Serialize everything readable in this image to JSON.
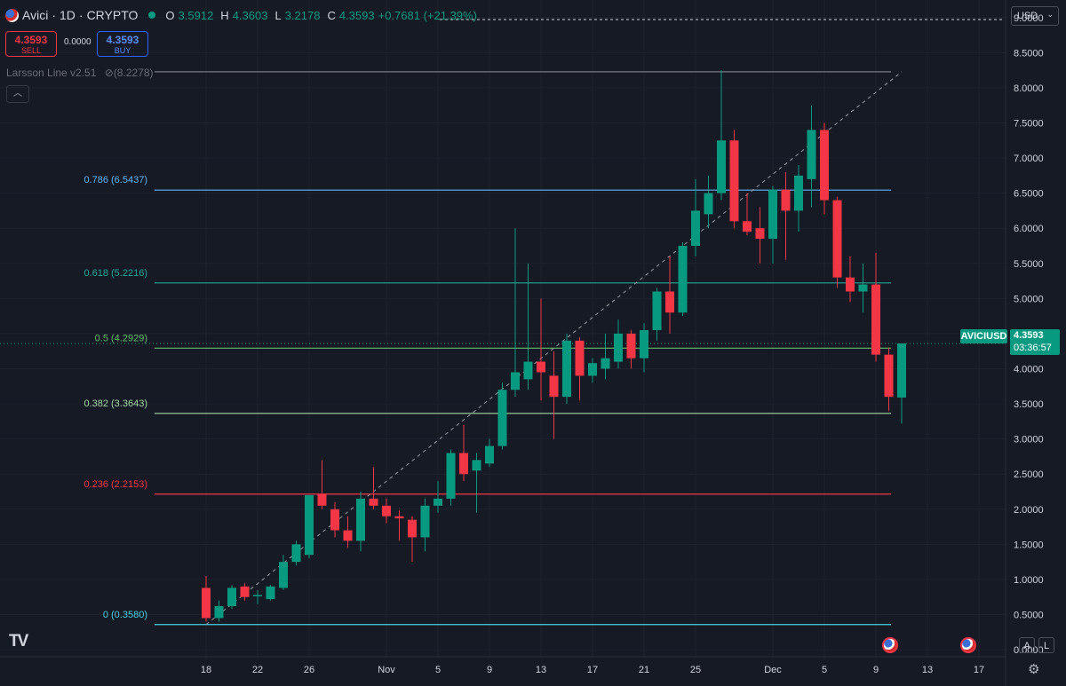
{
  "header": {
    "symbol_name": "Avici",
    "interval": "1D",
    "exchange": "CRYPTO",
    "open_label": "O",
    "open_value": "3.5912",
    "high_label": "H",
    "high_value": "4.3603",
    "low_label": "L",
    "low_value": "3.2178",
    "close_label": "C",
    "close_value": "4.3593",
    "change_value": "+0.7681 (+21.39%)"
  },
  "trade": {
    "sell_price": "4.3593",
    "sell_label": "SELL",
    "spread": "0.0000",
    "buy_price": "4.3593",
    "buy_label": "BUY"
  },
  "indicator": {
    "label": "Larsson Line v2.51",
    "extra": "(8.2278)"
  },
  "currency": {
    "label": "USD"
  },
  "price_tag": {
    "symbol": "AVICIUSD",
    "price": "4.3593",
    "countdown": "03:36:57"
  },
  "buttons": {
    "auto": "A",
    "log": "L"
  },
  "colors": {
    "background": "#161a25",
    "grid": "#1e222d",
    "up": "#089981",
    "down": "#f23645",
    "text": "#d1d4dc",
    "muted": "#787b86"
  },
  "chart_data": {
    "type": "candlestick",
    "title": "",
    "y_axis_ticks": [
      "9.0000",
      "8.5000",
      "8.0000",
      "7.5000",
      "7.0000",
      "6.5000",
      "6.0000",
      "5.5000",
      "5.0000",
      "4.5000",
      "4.0000",
      "3.5000",
      "3.0000",
      "2.5000",
      "2.0000",
      "1.5000",
      "1.0000",
      "0.5000",
      "0.0000"
    ],
    "ylim": [
      -0.1,
      9.25
    ],
    "x_axis_labels": [
      {
        "label": "18",
        "date": "2025-10-18"
      },
      {
        "label": "22",
        "date": "2025-10-22"
      },
      {
        "label": "26",
        "date": "2025-10-26"
      },
      {
        "label": "Nov",
        "date": "2025-11-01"
      },
      {
        "label": "5",
        "date": "2025-11-05"
      },
      {
        "label": "9",
        "date": "2025-11-09"
      },
      {
        "label": "13",
        "date": "2025-11-13"
      },
      {
        "label": "17",
        "date": "2025-11-17"
      },
      {
        "label": "21",
        "date": "2025-11-21"
      },
      {
        "label": "25",
        "date": "2025-11-25"
      },
      {
        "label": "Dec",
        "date": "2025-12-01"
      },
      {
        "label": "5",
        "date": "2025-12-05"
      },
      {
        "label": "9",
        "date": "2025-12-09"
      },
      {
        "label": "13",
        "date": "2025-12-13"
      },
      {
        "label": "17",
        "date": "2025-12-17"
      }
    ],
    "x_range": [
      "2025-10-18",
      "2025-12-17"
    ],
    "candles": [
      {
        "date": "2025-10-18",
        "o": 0.88,
        "h": 1.05,
        "l": 0.4,
        "c": 0.45
      },
      {
        "date": "2025-10-19",
        "o": 0.45,
        "h": 0.7,
        "l": 0.4,
        "c": 0.62
      },
      {
        "date": "2025-10-20",
        "o": 0.62,
        "h": 0.92,
        "l": 0.58,
        "c": 0.88
      },
      {
        "date": "2025-10-21",
        "o": 0.9,
        "h": 0.95,
        "l": 0.7,
        "c": 0.75
      },
      {
        "date": "2025-10-22",
        "o": 0.76,
        "h": 0.85,
        "l": 0.65,
        "c": 0.78
      },
      {
        "date": "2025-10-23",
        "o": 0.72,
        "h": 0.92,
        "l": 0.7,
        "c": 0.9
      },
      {
        "date": "2025-10-24",
        "o": 0.88,
        "h": 1.35,
        "l": 0.85,
        "c": 1.25
      },
      {
        "date": "2025-10-25",
        "o": 1.25,
        "h": 1.55,
        "l": 1.2,
        "c": 1.5
      },
      {
        "date": "2025-10-26",
        "o": 1.35,
        "h": 2.2,
        "l": 1.3,
        "c": 2.2
      },
      {
        "date": "2025-10-27",
        "o": 2.22,
        "h": 2.7,
        "l": 2.0,
        "c": 2.05
      },
      {
        "date": "2025-10-28",
        "o": 2.0,
        "h": 2.1,
        "l": 1.6,
        "c": 1.7
      },
      {
        "date": "2025-10-29",
        "o": 1.7,
        "h": 1.9,
        "l": 1.45,
        "c": 1.55
      },
      {
        "date": "2025-10-30",
        "o": 1.55,
        "h": 2.25,
        "l": 1.4,
        "c": 2.15
      },
      {
        "date": "2025-10-31",
        "o": 2.15,
        "h": 2.6,
        "l": 2.0,
        "c": 2.05
      },
      {
        "date": "2025-11-01",
        "o": 2.05,
        "h": 2.15,
        "l": 1.8,
        "c": 1.9
      },
      {
        "date": "2025-11-02",
        "o": 1.9,
        "h": 1.98,
        "l": 1.55,
        "c": 1.87
      },
      {
        "date": "2025-11-03",
        "o": 1.85,
        "h": 1.9,
        "l": 1.25,
        "c": 1.6
      },
      {
        "date": "2025-11-04",
        "o": 1.6,
        "h": 2.15,
        "l": 1.4,
        "c": 2.05
      },
      {
        "date": "2025-11-05",
        "o": 2.05,
        "h": 2.4,
        "l": 1.95,
        "c": 2.15
      },
      {
        "date": "2025-11-06",
        "o": 2.15,
        "h": 2.85,
        "l": 2.05,
        "c": 2.8
      },
      {
        "date": "2025-11-07",
        "o": 2.8,
        "h": 3.2,
        "l": 2.4,
        "c": 2.5
      },
      {
        "date": "2025-11-08",
        "o": 2.55,
        "h": 2.8,
        "l": 1.95,
        "c": 2.7
      },
      {
        "date": "2025-11-09",
        "o": 2.65,
        "h": 3.0,
        "l": 2.6,
        "c": 2.9
      },
      {
        "date": "2025-11-10",
        "o": 2.9,
        "h": 3.8,
        "l": 2.85,
        "c": 3.7
      },
      {
        "date": "2025-11-11",
        "o": 3.7,
        "h": 6.0,
        "l": 3.6,
        "c": 3.95
      },
      {
        "date": "2025-11-12",
        "o": 3.85,
        "h": 5.5,
        "l": 3.7,
        "c": 4.1
      },
      {
        "date": "2025-11-13",
        "o": 4.1,
        "h": 5.0,
        "l": 3.55,
        "c": 3.95
      },
      {
        "date": "2025-11-14",
        "o": 3.9,
        "h": 4.25,
        "l": 3.0,
        "c": 3.6
      },
      {
        "date": "2025-11-15",
        "o": 3.6,
        "h": 4.5,
        "l": 3.5,
        "c": 4.4
      },
      {
        "date": "2025-11-16",
        "o": 4.4,
        "h": 4.45,
        "l": 3.55,
        "c": 3.9
      },
      {
        "date": "2025-11-17",
        "o": 3.9,
        "h": 4.15,
        "l": 3.8,
        "c": 4.08
      },
      {
        "date": "2025-11-18",
        "o": 4.0,
        "h": 4.5,
        "l": 3.85,
        "c": 4.15
      },
      {
        "date": "2025-11-19",
        "o": 4.1,
        "h": 4.7,
        "l": 4.0,
        "c": 4.5
      },
      {
        "date": "2025-11-20",
        "o": 4.5,
        "h": 4.55,
        "l": 4.0,
        "c": 4.15
      },
      {
        "date": "2025-11-21",
        "o": 4.15,
        "h": 4.65,
        "l": 3.95,
        "c": 4.55
      },
      {
        "date": "2025-11-22",
        "o": 4.55,
        "h": 5.15,
        "l": 4.4,
        "c": 5.1
      },
      {
        "date": "2025-11-23",
        "o": 5.1,
        "h": 5.6,
        "l": 4.5,
        "c": 4.8
      },
      {
        "date": "2025-11-24",
        "o": 4.8,
        "h": 5.8,
        "l": 4.75,
        "c": 5.75
      },
      {
        "date": "2025-11-25",
        "o": 5.75,
        "h": 6.7,
        "l": 5.6,
        "c": 6.25
      },
      {
        "date": "2025-11-26",
        "o": 6.2,
        "h": 6.75,
        "l": 6.0,
        "c": 6.5
      },
      {
        "date": "2025-11-27",
        "o": 6.5,
        "h": 8.25,
        "l": 6.4,
        "c": 7.25
      },
      {
        "date": "2025-11-28",
        "o": 7.25,
        "h": 7.4,
        "l": 6.0,
        "c": 6.1
      },
      {
        "date": "2025-11-29",
        "o": 6.1,
        "h": 6.5,
        "l": 5.9,
        "c": 5.95
      },
      {
        "date": "2025-11-30",
        "o": 6.0,
        "h": 6.3,
        "l": 5.5,
        "c": 5.85
      },
      {
        "date": "2025-12-01",
        "o": 5.85,
        "h": 6.6,
        "l": 5.5,
        "c": 6.55
      },
      {
        "date": "2025-12-02",
        "o": 6.55,
        "h": 6.8,
        "l": 5.55,
        "c": 6.25
      },
      {
        "date": "2025-12-03",
        "o": 6.25,
        "h": 6.9,
        "l": 5.95,
        "c": 6.75
      },
      {
        "date": "2025-12-04",
        "o": 6.7,
        "h": 7.75,
        "l": 6.3,
        "c": 7.4
      },
      {
        "date": "2025-12-05",
        "o": 7.4,
        "h": 7.5,
        "l": 6.2,
        "c": 6.4
      },
      {
        "date": "2025-12-06",
        "o": 6.4,
        "h": 6.45,
        "l": 5.15,
        "c": 5.3
      },
      {
        "date": "2025-12-07",
        "o": 5.3,
        "h": 5.6,
        "l": 4.95,
        "c": 5.1
      },
      {
        "date": "2025-12-08",
        "o": 5.1,
        "h": 5.5,
        "l": 4.8,
        "c": 5.2
      },
      {
        "date": "2025-12-09",
        "o": 5.2,
        "h": 5.65,
        "l": 4.1,
        "c": 4.2
      },
      {
        "date": "2025-12-10",
        "o": 4.2,
        "h": 4.3,
        "l": 3.4,
        "c": 3.6
      },
      {
        "date": "2025-12-11",
        "o": 3.59,
        "h": 4.36,
        "l": 3.22,
        "c": 4.36
      }
    ],
    "fib_levels": [
      {
        "ratio": "0",
        "price": 0.358,
        "label": "0 (0.3580)",
        "color": "#4dd0e1"
      },
      {
        "ratio": "0.236",
        "price": 2.2153,
        "label": "0.236 (2.2153)",
        "color": "#f23645"
      },
      {
        "ratio": "0.382",
        "price": 3.3643,
        "label": "0.382 (3.3643)",
        "color": "#a5d6a7"
      },
      {
        "ratio": "0.5",
        "price": 4.2929,
        "label": "0.5 (4.2929)",
        "color": "#66bb6a"
      },
      {
        "ratio": "0.618",
        "price": 5.2216,
        "label": "0.618 (5.2216)",
        "color": "#26a69a"
      },
      {
        "ratio": "0.786",
        "price": 6.5437,
        "label": "0.786 (6.5437)",
        "color": "#64b5f6"
      },
      {
        "ratio": "1",
        "price": 8.2278,
        "label": "",
        "color": "#787b86"
      }
    ],
    "fib_trend": {
      "start_date": "2025-10-18",
      "start_price": 0.358,
      "end_date": "2025-12-11",
      "end_price": 8.2278
    },
    "last_price": 4.3593
  }
}
